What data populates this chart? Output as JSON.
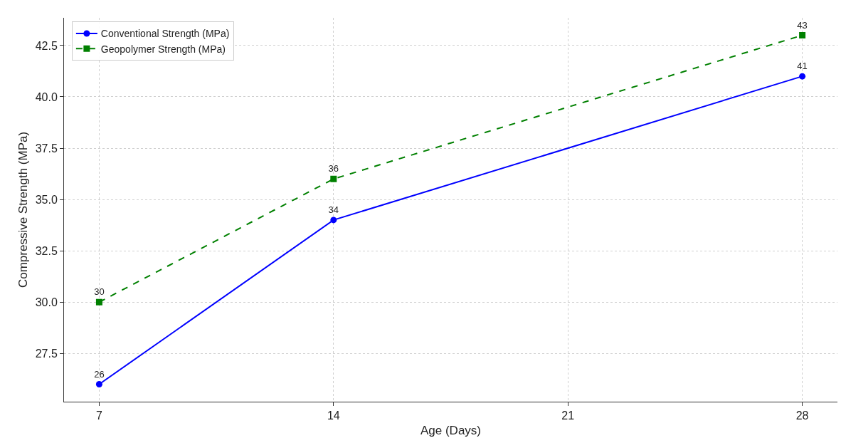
{
  "chart_data": {
    "type": "line",
    "xlabel": "Age (Days)",
    "ylabel": "Compressive Strength (MPa)",
    "x": [
      7,
      14,
      28
    ],
    "series": [
      {
        "name": "Conventional Strength (MPa)",
        "color": "#0000ff",
        "values": [
          26,
          34,
          41
        ],
        "marker": "circle",
        "line_style": "solid"
      },
      {
        "name": "Geopolymer Strength (MPa)",
        "color": "#008000",
        "values": [
          30,
          36,
          43
        ],
        "marker": "square",
        "line_style": "dashed"
      }
    ],
    "xlim": [
      5.95,
      29.05
    ],
    "xticks": [
      7,
      14,
      21,
      28
    ],
    "ylim": [
      25.15,
      43.85
    ],
    "yticks": [
      {
        "value": 27.5,
        "label": "27.5"
      },
      {
        "value": 30,
        "label": "30.0"
      },
      {
        "value": 32.5,
        "label": "32.5"
      },
      {
        "value": 35,
        "label": "35.0"
      },
      {
        "value": 37.5,
        "label": "37.5"
      },
      {
        "value": 40,
        "label": "40.0"
      },
      {
        "value": 42.5,
        "label": "42.5"
      }
    ],
    "grid": true,
    "legend": "top left",
    "data_labels": true
  }
}
